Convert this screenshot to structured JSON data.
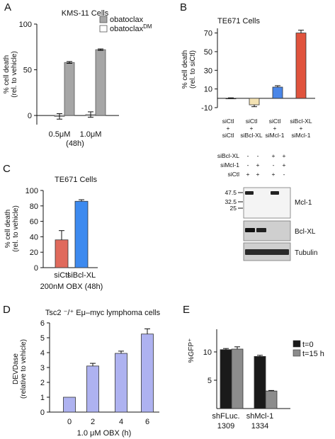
{
  "panels": {
    "A": {
      "letter": "A"
    },
    "B": {
      "letter": "B"
    },
    "C": {
      "letter": "C"
    },
    "D": {
      "letter": "D"
    },
    "E": {
      "letter": "E"
    }
  },
  "chart_data": [
    {
      "id": "A",
      "type": "bar",
      "title": "KMS-11 Cells",
      "ylabel": "% cell death\n(rel. to vehicle)",
      "xlabel": "(48h)",
      "categories": [
        "0.5μM",
        "1.0μM"
      ],
      "ylim": [
        -10,
        100
      ],
      "yticks": [
        0,
        50,
        100
      ],
      "series": [
        {
          "name": "obatoclax^DM",
          "color": "#ffffff",
          "values": [
            -1,
            1
          ],
          "errors": [
            3,
            3
          ]
        },
        {
          "name": "obatoclax",
          "color": "#a6a6a6",
          "values": [
            58,
            72
          ],
          "errors": [
            1,
            0.8
          ]
        }
      ],
      "legend": [
        "obatoclax",
        "obatoclax^DM"
      ],
      "legend_position": "top-right"
    },
    {
      "id": "B",
      "type": "bar",
      "title": "TE671 Cells",
      "ylabel": "% cell death\n(rel. to siCtl)",
      "ylim": [
        -10,
        75
      ],
      "yticks": [
        -10,
        10,
        30,
        50,
        70
      ],
      "categories": [
        [
          "siCtl",
          "+",
          "siCtl"
        ],
        [
          "siCtl",
          "+",
          "siBcl-XL"
        ],
        [
          "siCtl",
          "+",
          "siMcl-1"
        ],
        [
          "siBcl-XL",
          "+",
          "siMcl-1"
        ]
      ],
      "values": [
        0,
        -7,
        12,
        70
      ],
      "errors": [
        0.5,
        2,
        1.5,
        3
      ],
      "colors": [
        "#ffffff",
        "#f3e2b3",
        "#4a86e8",
        "#e0533d"
      ]
    },
    {
      "id": "C",
      "type": "bar",
      "title": "TE671 Cells",
      "ylabel": "% cell death\n(rel. to vehicle)",
      "xlabel": "200nM OBX (48h)",
      "ylim": [
        0,
        100
      ],
      "yticks": [
        0,
        20,
        40,
        60,
        80,
        100
      ],
      "categories": [
        "siCtl",
        "siBcl-XL"
      ],
      "values": [
        36,
        86
      ],
      "errors": [
        12,
        2
      ],
      "colors": [
        "#e06a5c",
        "#3d8aef"
      ]
    },
    {
      "id": "D",
      "type": "bar",
      "title": "Tsc2 ⁻/⁺ Eμ–myc lymphoma cells",
      "ylabel": "DEVDase\n(relative to vehicle)",
      "xlabel": "1.0 μM OBX (h)",
      "ylim": [
        0,
        6
      ],
      "yticks": [
        0,
        1,
        2,
        3,
        4,
        5,
        6
      ],
      "categories": [
        "0",
        "2",
        "4",
        "6"
      ],
      "values": [
        1.0,
        3.1,
        3.95,
        5.25
      ],
      "errors": [
        0,
        0.18,
        0.15,
        0.35
      ],
      "color": "#aeb2f0"
    },
    {
      "id": "E",
      "type": "bar",
      "ylabel": "%GFP⁺",
      "ylim": [
        0,
        14
      ],
      "yticks": [
        5,
        10
      ],
      "categories": [
        [
          "shFLuc.",
          "1309"
        ],
        [
          "shMcl-1",
          "1334"
        ]
      ],
      "series": [
        {
          "name": "t=0",
          "color": "#1a1a1a",
          "values": [
            10.4,
            9.2
          ],
          "errors": [
            0.2,
            0.2
          ]
        },
        {
          "name": "t=15 h",
          "color": "#8c8c8c",
          "values": [
            10.5,
            3.1
          ],
          "errors": [
            0.4,
            0.1
          ]
        }
      ],
      "legend": [
        "t=0",
        "t=15 h"
      ],
      "legend_position": "top-right"
    }
  ],
  "blot": {
    "conditions": [
      {
        "label": "siBcl-XL",
        "marks": [
          "-",
          "-",
          "+",
          "+"
        ]
      },
      {
        "label": "siMcl-1",
        "marks": [
          "-",
          "+",
          "-",
          "+"
        ]
      },
      {
        "label": "siCtl",
        "marks": [
          "+",
          "+",
          "+",
          "-"
        ]
      }
    ],
    "markers": [
      "47.5",
      "32.5",
      "25"
    ],
    "bands": [
      "Mcl-1",
      "Bcl-XL",
      "Tubulin"
    ]
  }
}
